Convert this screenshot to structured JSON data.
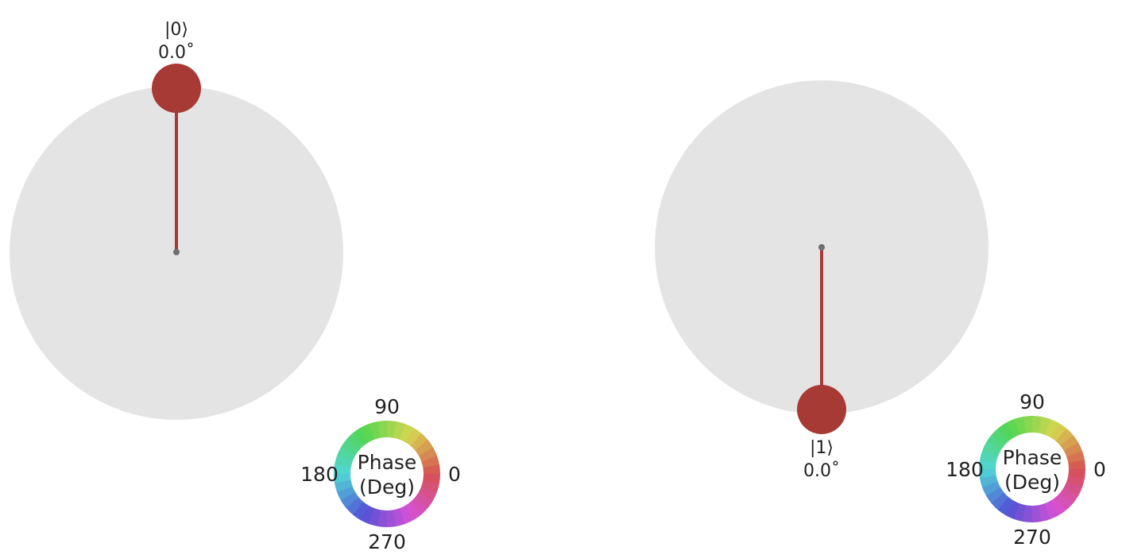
{
  "panels": [
    {
      "state_label": "|0⟩",
      "phase_label": "0.0˚",
      "amplitude": 1.0,
      "direction": "up",
      "phase_deg": 0.0
    },
    {
      "state_label": "|1⟩",
      "phase_label": "0.0˚",
      "amplitude": 1.0,
      "direction": "down",
      "phase_deg": 0.0
    }
  ],
  "phase_wheel": {
    "title_line1": "Phase",
    "title_line2": "(Deg)",
    "tick_0": "0",
    "tick_90": "90",
    "tick_180": "180",
    "tick_270": "270"
  },
  "colors": {
    "sphere": "#e4e4e4",
    "state_vector": "#a83a35",
    "state_bob": "#a83a35",
    "center_dot": "#6f6f6f"
  }
}
